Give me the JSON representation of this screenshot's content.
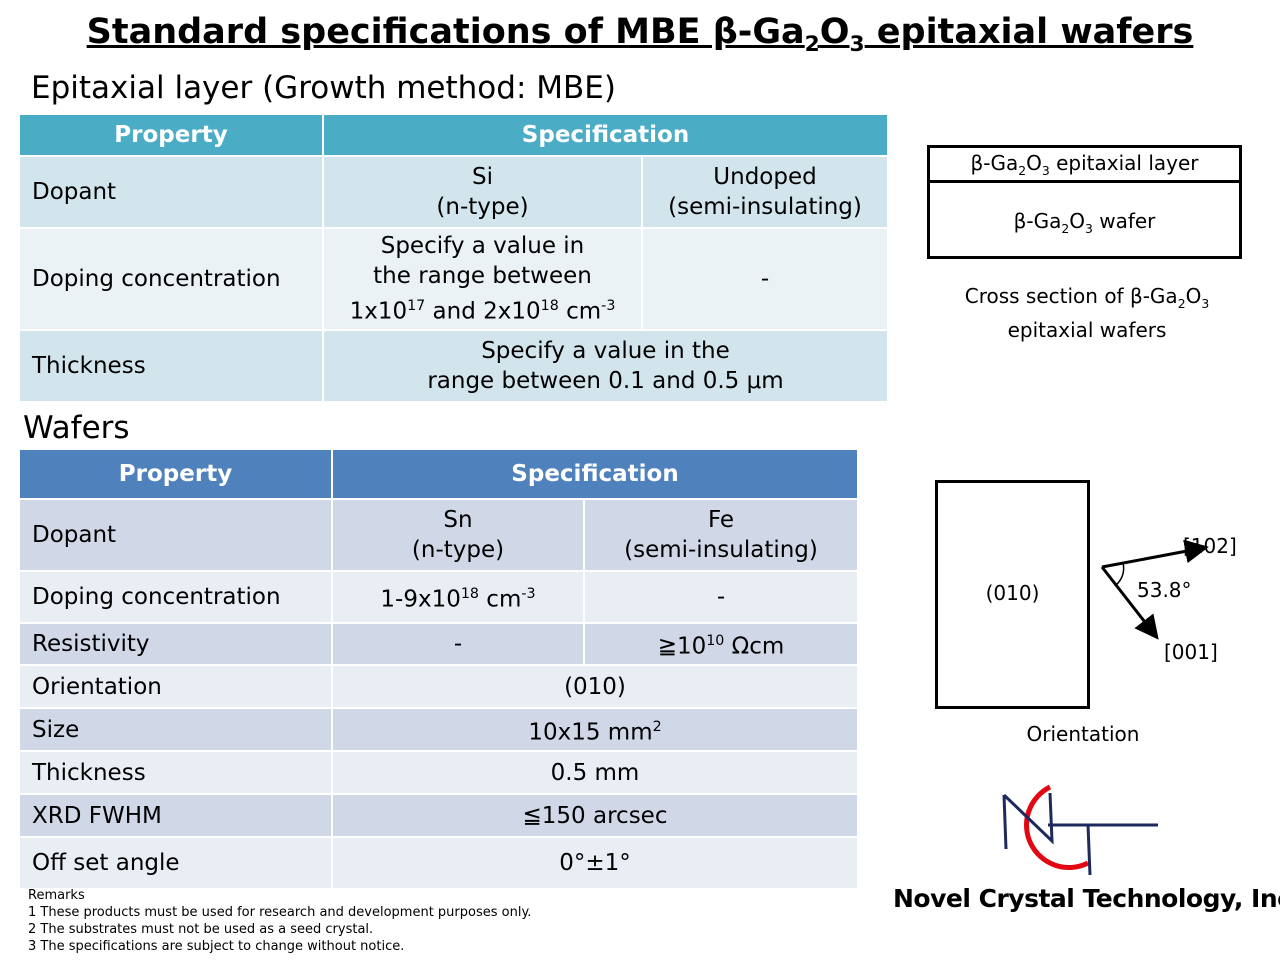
{
  "title": {
    "pre": "Standard specifications of MBE β-Ga",
    "sub1": "2",
    "mid": "O",
    "sub2": "3",
    "post": " epitaxial wafers"
  },
  "epi": {
    "heading": "Epitaxial layer (Growth method: MBE)",
    "col_property": "Property",
    "col_specification": "Specification",
    "dopant": {
      "label": "Dopant",
      "si_line1": "Si",
      "si_line2": "(n-type)",
      "undoped_line1": "Undoped",
      "undoped_line2": "(semi-insulating)"
    },
    "doping": {
      "label": "Doping concentration",
      "line1": "Specify a value in",
      "line2": "the range between",
      "a": "1x10",
      "a_exp": "17",
      "and": " and 2x10",
      "b_exp": "18",
      "unit": " cm",
      "unit_exp": "-3",
      "undoped": "-"
    },
    "thickness": {
      "label": "Thickness",
      "line1": "Specify a value in the",
      "line2": "range between 0.1 and 0.5 μm"
    }
  },
  "wafers": {
    "heading": "Wafers",
    "col_property": "Property",
    "col_specification": "Specification",
    "dopant": {
      "label": "Dopant",
      "sn_line1": "Sn",
      "sn_line2": "(n-type)",
      "fe_line1": "Fe",
      "fe_line2": "(semi-insulating)"
    },
    "doping": {
      "label": "Doping concentration",
      "sn": "1-9x10",
      "sn_exp": "18",
      "sn_unit": " cm",
      "sn_unit_exp": "-3",
      "fe": "-"
    },
    "resistivity": {
      "label": "Resistivity",
      "sn": "-",
      "fe": "≧10",
      "fe_exp": "10",
      "fe_unit": " Ωcm"
    },
    "orientation": {
      "label": "Orientation",
      "value": "(010)"
    },
    "size": {
      "label": "Size",
      "value": "10x15 mm",
      "value_exp": "2"
    },
    "thickness": {
      "label": "Thickness",
      "value": "0.5 mm"
    },
    "xrd": {
      "label": "XRD FWHM",
      "value": "≦150 arcsec"
    },
    "offset": {
      "label": "Off set angle",
      "value": "0°±1°"
    }
  },
  "cross_section": {
    "layer": {
      "pre": "β-Ga",
      "s1": "2",
      "mid": "O",
      "s2": "3",
      "post": " epitaxial layer"
    },
    "wafer": {
      "pre": "β-Ga",
      "s1": "2",
      "mid": "O",
      "s2": "3",
      "post": " wafer"
    },
    "caption_line1": {
      "pre": "Cross section of β-Ga",
      "s1": "2",
      "mid": "O",
      "s2": "3"
    },
    "caption_line2": "epitaxial wafers"
  },
  "orientation_diagram": {
    "face": "(010)",
    "dir_102": "[102]",
    "dir_001": "[001]",
    "angle": "53.8°",
    "caption": "Orientation"
  },
  "remarks": {
    "heading": "Remarks",
    "items": [
      "1 These products must be used for research and development purposes only.",
      "2 The substrates must not be used as a seed crystal.",
      "3 The specifications are subject to change without notice."
    ]
  },
  "logo": {
    "company": "Novel Crystal Technology, Inc.",
    "ring_color": "#e30613",
    "mark_color": "#1f2a5c"
  }
}
